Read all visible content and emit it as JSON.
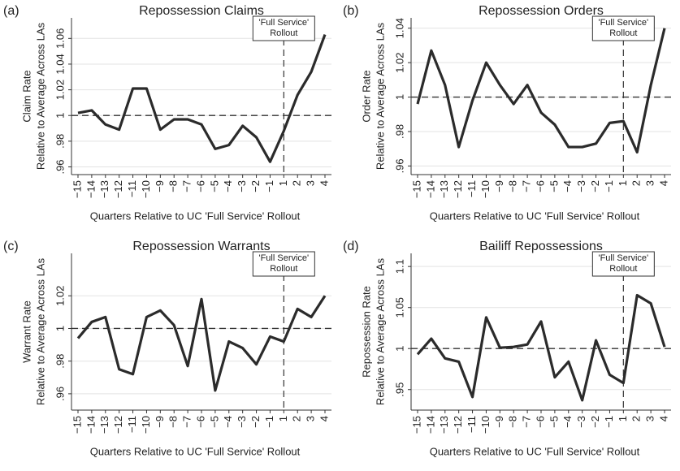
{
  "chart_data": [
    {
      "type": "line",
      "panel": "(a)",
      "title": "Repossession Claims",
      "ylabel": [
        "Claim Rate",
        "Relative to Average Across LAs"
      ],
      "xlabel": "Quarters Relative to UC 'Full Service' Rollout",
      "annotation": [
        "'Full Service'",
        "Rollout"
      ],
      "categories": [
        "−15",
        "−14",
        "−13",
        "−12",
        "−11",
        "−10",
        "−9",
        "−8",
        "−7",
        "−6",
        "−5",
        "−4",
        "−3",
        "−2",
        "−1",
        "1",
        "2",
        "3",
        "4"
      ],
      "values": [
        1.002,
        1.004,
        0.993,
        0.989,
        1.021,
        1.021,
        0.989,
        0.997,
        0.997,
        0.993,
        0.974,
        0.977,
        0.992,
        0.983,
        0.964,
        0.988,
        1.016,
        1.034,
        1.063
      ],
      "color": "#2b2b2b",
      "ylim": [
        0.954,
        1.076
      ],
      "yticks": [
        {
          "value": 0.96,
          "label": ".96"
        },
        {
          "value": 0.98,
          "label": ".98"
        },
        1,
        1.02,
        1.04,
        1.06
      ],
      "grid": true,
      "hline": 1,
      "vline": "1"
    },
    {
      "type": "line",
      "panel": "(b)",
      "title": "Repossession Orders",
      "ylabel": [
        "Order Rate",
        "Relative to Average Across LAs"
      ],
      "xlabel": "Quarters Relative to UC 'Full Service' Rollout",
      "annotation": [
        "'Full Service'",
        "Rollout"
      ],
      "categories": [
        "−15",
        "−14",
        "−13",
        "−12",
        "−11",
        "−10",
        "−9",
        "−8",
        "−7",
        "−6",
        "−5",
        "−4",
        "−3",
        "−2",
        "−1",
        "1",
        "2",
        "3",
        "4"
      ],
      "values": [
        0.996,
        1.027,
        1.007,
        0.971,
        0.998,
        1.02,
        1.007,
        0.996,
        1.007,
        0.991,
        0.984,
        0.971,
        0.971,
        0.973,
        0.985,
        0.986,
        0.968,
        1.007,
        1.04
      ],
      "color": "#2b2b2b",
      "ylim": [
        0.955,
        1.046
      ],
      "yticks": [
        {
          "value": 0.96,
          "label": ".96"
        },
        {
          "value": 0.98,
          "label": ".98"
        },
        1,
        1.02,
        1.04
      ],
      "grid": true,
      "hline": 1,
      "vline": "1"
    },
    {
      "type": "line",
      "panel": "(c)",
      "title": "Repossession Warrants",
      "ylabel": [
        "Warrant Rate",
        "Relative to Average Across LAs"
      ],
      "xlabel": "Quarters Relative to UC 'Full Service' Rollout",
      "annotation": [
        "'Full Service'",
        "Rollout"
      ],
      "categories": [
        "−15",
        "−14",
        "−13",
        "−12",
        "−11",
        "−10",
        "−9",
        "−8",
        "−7",
        "−6",
        "−5",
        "−4",
        "−3",
        "−2",
        "−1",
        "1",
        "2",
        "3",
        "4"
      ],
      "values": [
        0.994,
        1.004,
        1.007,
        0.975,
        0.972,
        1.007,
        1.011,
        1.002,
        0.977,
        1.018,
        0.962,
        0.992,
        0.988,
        0.978,
        0.995,
        0.992,
        1.012,
        1.007,
        1.02
      ],
      "color": "#2b2b2b",
      "ylim": [
        0.95,
        1.046
      ],
      "yticks": [
        {
          "value": 0.96,
          "label": ".96"
        },
        {
          "value": 0.98,
          "label": ".98"
        },
        1,
        1.02
      ],
      "grid": true,
      "hline": 1,
      "vline": "1"
    },
    {
      "type": "line",
      "panel": "(d)",
      "title": "Bailiff Repossessions",
      "ylabel": [
        "Repossession Rate",
        "Relative to Average Across LAs"
      ],
      "xlabel": "Quarters Relative to UC 'Full Service' Rollout",
      "annotation": [
        "'Full Service'",
        "Rollout"
      ],
      "categories": [
        "−15",
        "−14",
        "−13",
        "−12",
        "−11",
        "−10",
        "−9",
        "−8",
        "−7",
        "−6",
        "−5",
        "−4",
        "−3",
        "−2",
        "−1",
        "1",
        "2",
        "3",
        "4"
      ],
      "values": [
        0.993,
        1.012,
        0.988,
        0.984,
        0.941,
        1.038,
        1.001,
        1.002,
        1.005,
        1.033,
        0.965,
        0.984,
        0.937,
        1.01,
        0.968,
        0.958,
        1.065,
        1.055,
        1.002
      ],
      "color": "#2b2b2b",
      "ylim": [
        0.925,
        1.116
      ],
      "yticks": [
        {
          "value": 0.95,
          "label": ".95"
        },
        1,
        1.05,
        1.1
      ],
      "grid": true,
      "hline": 1,
      "vline": "1"
    }
  ]
}
